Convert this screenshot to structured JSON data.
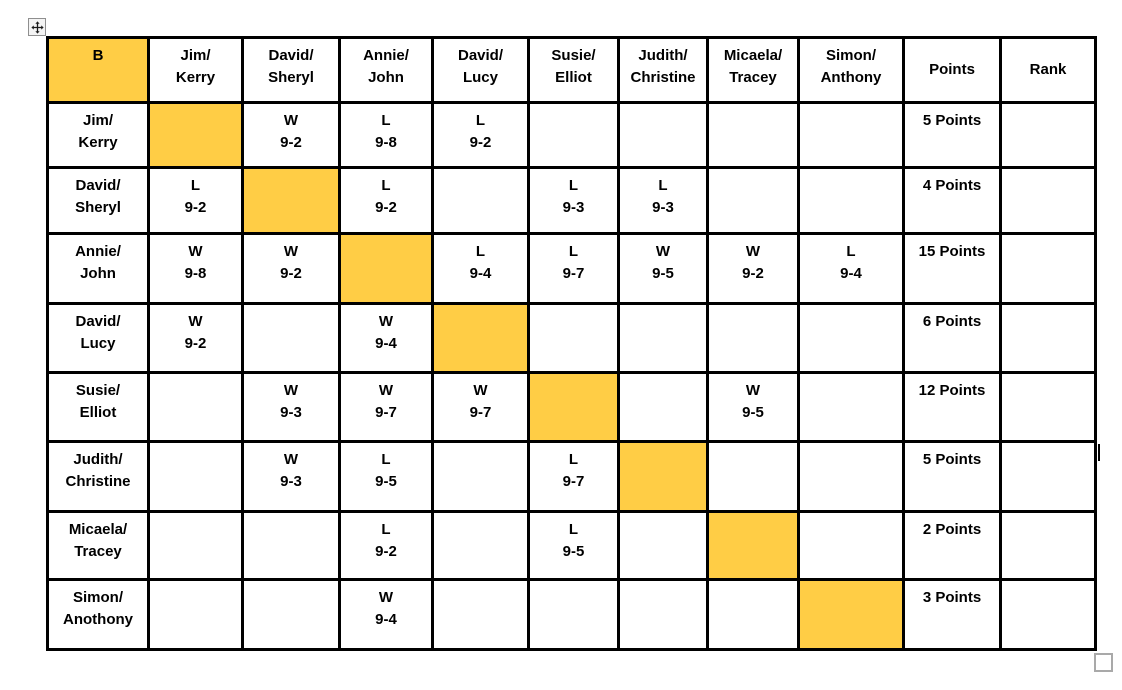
{
  "colors": {
    "highlight": "#FFCD45",
    "border": "#000000",
    "handle_border": "#8F8F8F",
    "handle_bg": "#F4F4F4",
    "resize_border": "#A9A9A9"
  },
  "icons": {
    "move_handle": "move-cross-arrows-icon",
    "resize_handle": "resize-square-handle"
  },
  "table": {
    "corner_label": "B",
    "opponent_headers": [
      "Jim/\nKerry",
      "David/\nSheryl",
      "Annie/\nJohn",
      "David/\nLucy",
      "Susie/\nElliot",
      "Judith/\nChristine",
      "Micaela/\nTracey",
      "Simon/\nAnthony"
    ],
    "points_header": "Points",
    "rank_header": "Rank",
    "rows": [
      {
        "label": "Jim/\nKerry",
        "results": [
          "",
          "W\n9-2",
          "L\n9-8",
          "L\n9-2",
          "",
          "",
          "",
          ""
        ],
        "points": "5 Points",
        "rank": ""
      },
      {
        "label": "David/\nSheryl",
        "results": [
          "L\n9-2",
          "",
          "L\n9-2",
          "",
          "L\n9-3",
          "L\n9-3",
          "",
          ""
        ],
        "points": "4 Points",
        "rank": ""
      },
      {
        "label": "Annie/\nJohn",
        "results": [
          "W\n9-8",
          "W\n9-2",
          "",
          "L\n9-4",
          "L\n9-7",
          "W\n9-5",
          "W\n9-2",
          "L\n9-4"
        ],
        "points": "15 Points",
        "rank": ""
      },
      {
        "label": "David/\nLucy",
        "results": [
          "W\n9-2",
          "",
          "W\n9-4",
          "",
          "",
          "",
          "",
          ""
        ],
        "points": "6 Points",
        "rank": ""
      },
      {
        "label": "Susie/\nElliot",
        "results": [
          "",
          "W\n9-3",
          "W\n9-7",
          "W\n9-7",
          "",
          "",
          "W\n9-5",
          ""
        ],
        "points": "12 Points",
        "rank": ""
      },
      {
        "label": "Judith/\nChristine",
        "results": [
          "",
          "W\n9-3",
          "L\n9-5",
          "",
          "L\n9-7",
          "",
          "",
          ""
        ],
        "points": "5 Points",
        "rank": ""
      },
      {
        "label": "Micaela/\nTracey",
        "results": [
          "",
          "",
          "L\n9-2",
          "",
          "L\n9-5",
          "",
          "",
          ""
        ],
        "points": "2 Points",
        "rank": ""
      },
      {
        "label": "Simon/\nAnothony",
        "results": [
          "",
          "",
          "W\n9-4",
          "",
          "",
          "",
          "",
          ""
        ],
        "points": "3 Points",
        "rank": ""
      }
    ]
  }
}
